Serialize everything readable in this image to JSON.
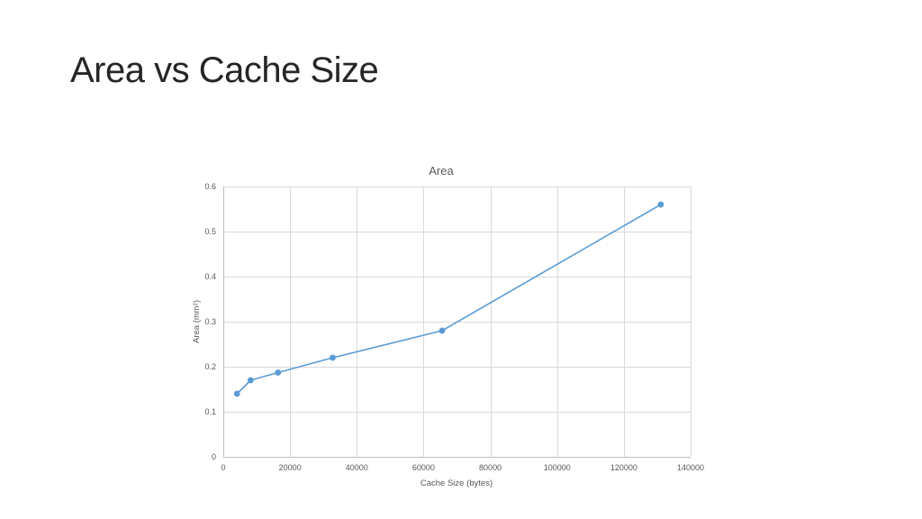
{
  "slide": {
    "title": "Area vs Cache Size"
  },
  "chart_data": {
    "type": "scatter",
    "title": "Area",
    "xlabel": "Cache Size (bytes)",
    "ylabel": "Area (mm²)",
    "xlim": [
      0,
      140000
    ],
    "ylim": [
      0,
      0.6
    ],
    "x_ticks": [
      "0",
      "20000",
      "40000",
      "60000",
      "80000",
      "100000",
      "120000",
      "140000"
    ],
    "y_ticks": [
      "0",
      "0.1",
      "0.2",
      "0.3",
      "0.4",
      "0.5",
      "0.6"
    ],
    "grid": true,
    "legend": "none",
    "line_color": "#5b9bd5",
    "series": [
      {
        "x": [
          4096,
          8192,
          16384,
          32768,
          65536,
          131072
        ],
        "y": [
          0.14,
          0.17,
          0.187,
          0.22,
          0.28,
          0.56
        ]
      }
    ]
  }
}
